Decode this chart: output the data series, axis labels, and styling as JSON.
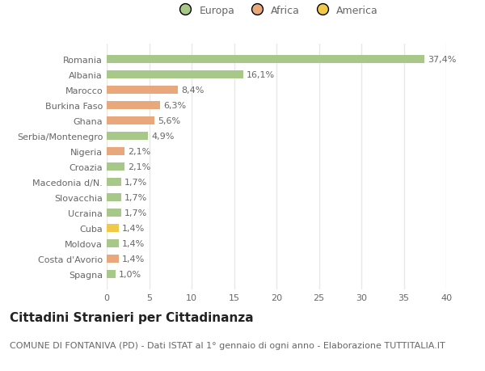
{
  "countries": [
    "Romania",
    "Albania",
    "Marocco",
    "Burkina Faso",
    "Ghana",
    "Serbia/Montenegro",
    "Nigeria",
    "Croazia",
    "Macedonia d/N.",
    "Slovacchia",
    "Ucraina",
    "Cuba",
    "Moldova",
    "Costa d'Avorio",
    "Spagna"
  ],
  "values": [
    37.4,
    16.1,
    8.4,
    6.3,
    5.6,
    4.9,
    2.1,
    2.1,
    1.7,
    1.7,
    1.7,
    1.4,
    1.4,
    1.4,
    1.0
  ],
  "continents": [
    "Europa",
    "Europa",
    "Africa",
    "Africa",
    "Africa",
    "Europa",
    "Africa",
    "Europa",
    "Europa",
    "Europa",
    "Europa",
    "America",
    "Europa",
    "Africa",
    "Europa"
  ],
  "colors": {
    "Europa": "#a8c88a",
    "Africa": "#e8a87c",
    "America": "#f0c84a"
  },
  "title": "Cittadini Stranieri per Cittadinanza",
  "subtitle": "COMUNE DI FONTANIVA (PD) - Dati ISTAT al 1° gennaio di ogni anno - Elaborazione TUTTITALIA.IT",
  "xlim": [
    0,
    40
  ],
  "xticks": [
    0,
    5,
    10,
    15,
    20,
    25,
    30,
    35,
    40
  ],
  "background_color": "#ffffff",
  "grid_color": "#e8e8e8",
  "bar_height": 0.55,
  "label_fontsize": 8,
  "tick_fontsize": 8,
  "legend_fontsize": 9,
  "title_fontsize": 11,
  "subtitle_fontsize": 8
}
